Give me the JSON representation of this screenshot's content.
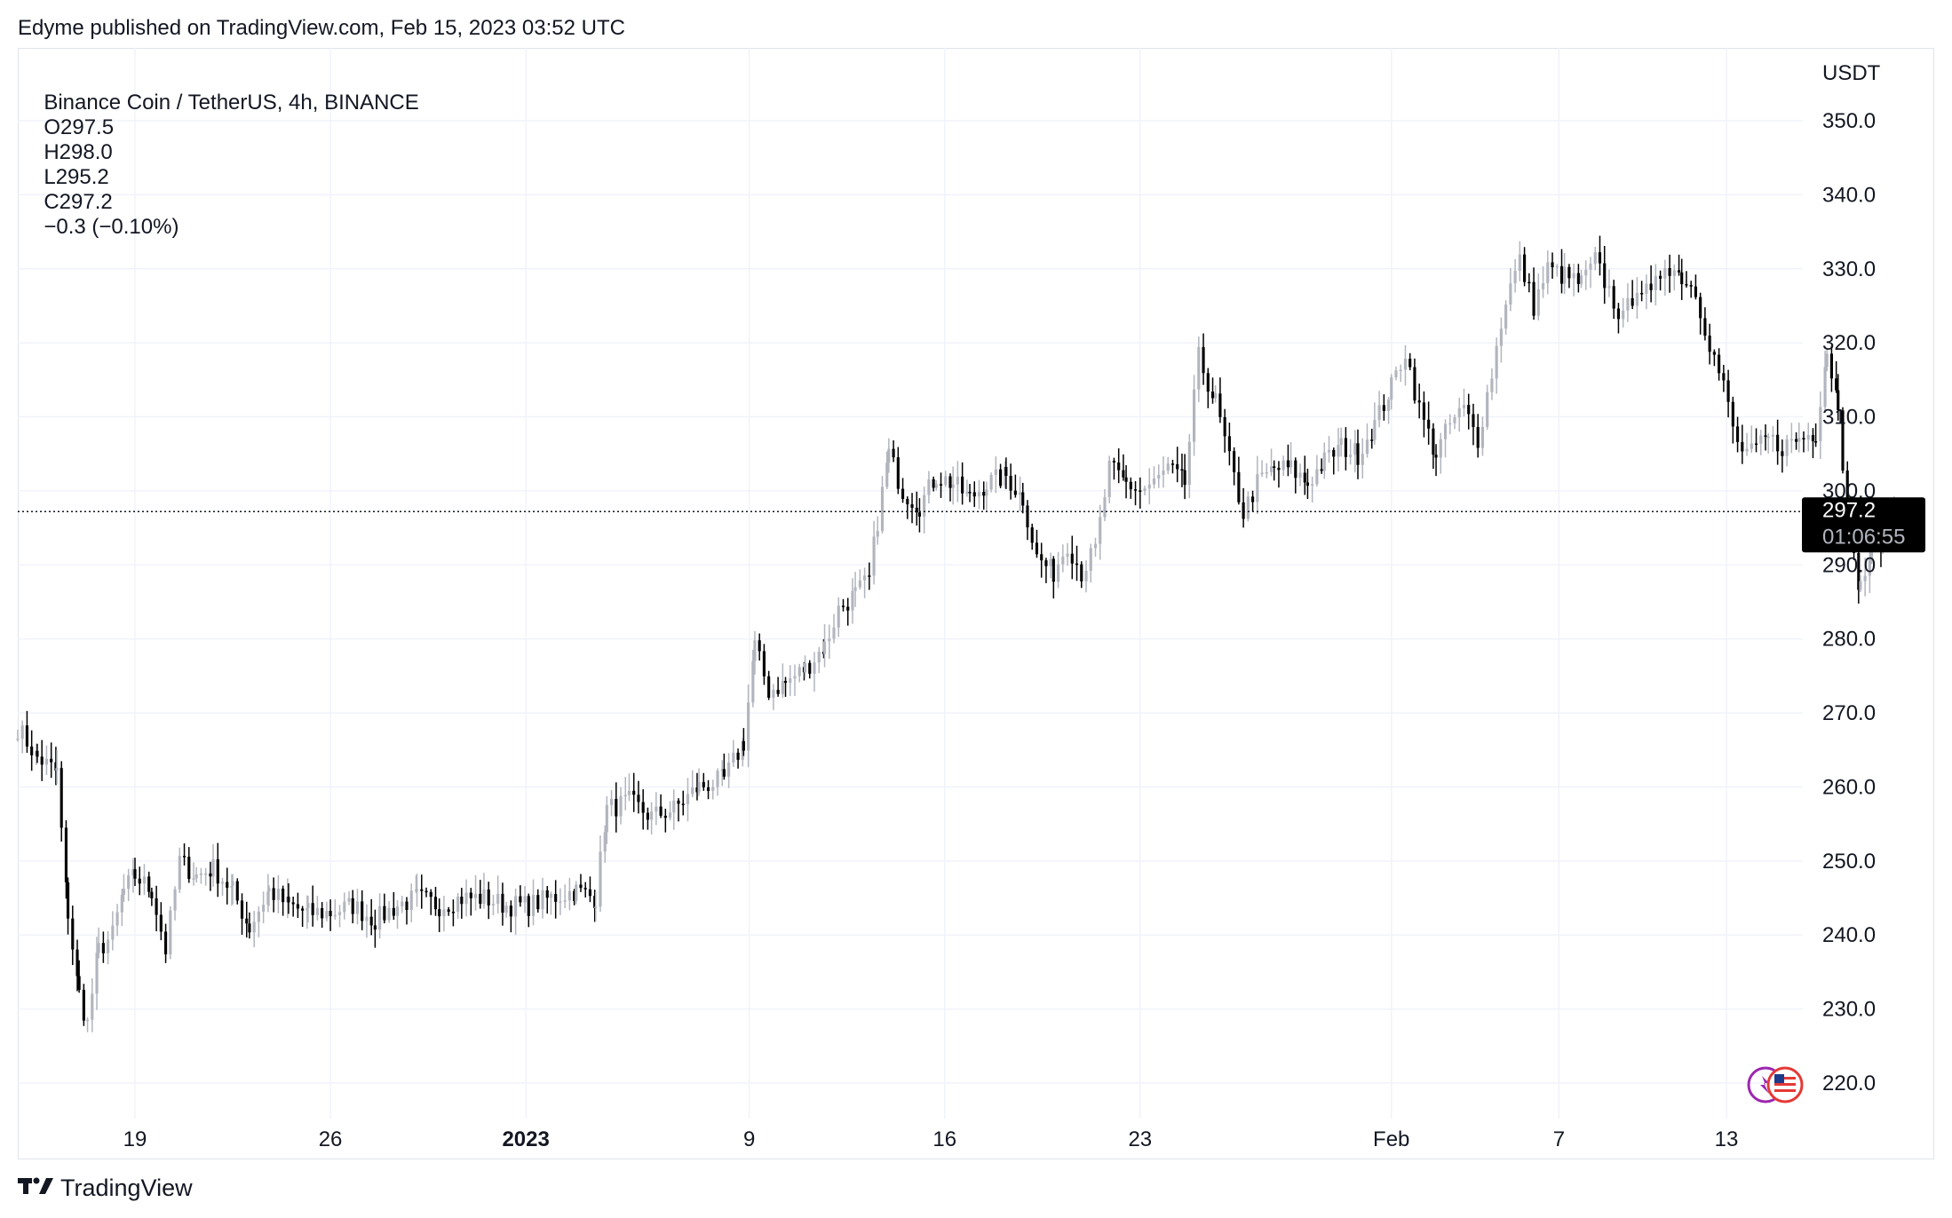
{
  "publisher": "Edyme published on TradingView.com, Feb 15, 2023 03:52 UTC",
  "legend": {
    "symbol": "Binance Coin / TetherUS, 4h, BINANCE",
    "open": "O297.5",
    "high": "H298.0",
    "low": "L295.2",
    "close": "C297.2",
    "change": "−0.3 (−0.10%)"
  },
  "footer": {
    "brand": "TradingView",
    "logo": "tradingview-logo-icon"
  },
  "colors": {
    "up": "#b2b5be",
    "down": "#000000",
    "grid": "#f0f3fa",
    "price_label_bg": "#000000"
  },
  "chart_data": {
    "type": "candlestick",
    "symbol": "BNB/USDT",
    "interval": "4h",
    "unit_label": "USDT",
    "y_ticks": [
      "350.0",
      "340.0",
      "330.0",
      "320.0",
      "310.0",
      "300.0",
      "290.0",
      "280.0",
      "270.0",
      "260.0",
      "250.0",
      "240.0",
      "230.0",
      "220.0"
    ],
    "ylim": [
      215,
      355
    ],
    "x_ticks": [
      {
        "label": "19",
        "day": 19,
        "bold": false
      },
      {
        "label": "26",
        "day": 26,
        "bold": false
      },
      {
        "label": "2023",
        "day": 33,
        "bold": true
      },
      {
        "label": "9",
        "day": 41,
        "bold": false
      },
      {
        "label": "16",
        "day": 48,
        "bold": false
      },
      {
        "label": "23",
        "day": 55,
        "bold": false
      },
      {
        "label": "Feb",
        "day": 64,
        "bold": false
      },
      {
        "label": "7",
        "day": 70,
        "bold": false
      },
      {
        "label": "13",
        "day": 76,
        "bold": false
      }
    ],
    "x_axis_note": "day index = days since Dec 1, 2022",
    "grid": true,
    "last_price": "297.2",
    "countdown": "01:06:55",
    "path_points": [
      [
        14.8,
        268
      ],
      [
        15.5,
        264
      ],
      [
        16.2,
        262
      ],
      [
        16.6,
        243
      ],
      [
        17.0,
        232
      ],
      [
        17.3,
        228
      ],
      [
        17.7,
        238
      ],
      [
        18.2,
        240
      ],
      [
        18.6,
        246
      ],
      [
        19.0,
        248
      ],
      [
        19.6,
        246
      ],
      [
        20.1,
        238
      ],
      [
        20.6,
        250
      ],
      [
        21.2,
        248
      ],
      [
        21.8,
        249
      ],
      [
        22.5,
        246
      ],
      [
        23.1,
        241
      ],
      [
        23.8,
        246
      ],
      [
        24.5,
        244
      ],
      [
        25.2,
        243
      ],
      [
        26.0,
        243
      ],
      [
        26.8,
        244
      ],
      [
        27.6,
        242
      ],
      [
        28.4,
        244
      ],
      [
        29.1,
        245
      ],
      [
        29.9,
        244
      ],
      [
        30.7,
        245
      ],
      [
        31.5,
        245
      ],
      [
        32.3,
        244
      ],
      [
        33.1,
        244
      ],
      [
        33.9,
        245
      ],
      [
        34.8,
        246
      ],
      [
        35.5,
        245
      ],
      [
        35.9,
        257
      ],
      [
        36.7,
        258
      ],
      [
        37.5,
        256
      ],
      [
        38.3,
        257
      ],
      [
        39.2,
        260
      ],
      [
        40.1,
        261
      ],
      [
        40.8,
        266
      ],
      [
        41.2,
        279
      ],
      [
        41.7,
        273
      ],
      [
        42.3,
        274
      ],
      [
        43.0,
        276
      ],
      [
        43.7,
        279
      ],
      [
        44.2,
        284
      ],
      [
        44.8,
        286
      ],
      [
        45.3,
        288
      ],
      [
        45.6,
        296
      ],
      [
        46.0,
        305
      ],
      [
        46.5,
        300
      ],
      [
        47.1,
        298
      ],
      [
        47.7,
        302
      ],
      [
        48.3,
        301
      ],
      [
        48.9,
        299
      ],
      [
        49.5,
        301
      ],
      [
        50.2,
        302
      ],
      [
        50.8,
        299
      ],
      [
        51.3,
        291
      ],
      [
        51.9,
        289
      ],
      [
        52.4,
        293
      ],
      [
        52.9,
        289
      ],
      [
        53.4,
        292
      ],
      [
        53.9,
        303
      ],
      [
        54.5,
        301
      ],
      [
        55.0,
        300
      ],
      [
        55.5,
        301
      ],
      [
        56.0,
        303
      ],
      [
        56.6,
        301
      ],
      [
        57.1,
        318
      ],
      [
        57.7,
        312
      ],
      [
        58.2,
        304
      ],
      [
        58.7,
        297
      ],
      [
        59.2,
        301
      ],
      [
        59.8,
        303
      ],
      [
        60.4,
        303
      ],
      [
        61.0,
        301
      ],
      [
        61.6,
        304
      ],
      [
        62.2,
        306
      ],
      [
        62.8,
        305
      ],
      [
        63.4,
        309
      ],
      [
        64.0,
        314
      ],
      [
        64.5,
        319
      ],
      [
        65.0,
        311
      ],
      [
        65.6,
        305
      ],
      [
        66.1,
        309
      ],
      [
        66.6,
        311
      ],
      [
        67.1,
        307
      ],
      [
        67.6,
        316
      ],
      [
        68.1,
        326
      ],
      [
        68.6,
        331
      ],
      [
        69.1,
        325
      ],
      [
        69.6,
        330
      ],
      [
        70.2,
        329
      ],
      [
        70.8,
        328
      ],
      [
        71.3,
        331
      ],
      [
        71.8,
        327
      ],
      [
        72.3,
        323
      ],
      [
        72.8,
        328
      ],
      [
        73.3,
        326
      ],
      [
        73.8,
        331
      ],
      [
        74.4,
        329
      ],
      [
        74.9,
        327
      ],
      [
        75.4,
        320
      ],
      [
        75.9,
        314
      ],
      [
        76.4,
        306
      ],
      [
        76.9,
        305
      ],
      [
        77.5,
        307
      ],
      [
        78.0,
        306
      ],
      [
        78.6,
        307
      ],
      [
        79.2,
        308
      ],
      [
        79.6,
        319
      ],
      [
        80.0,
        312
      ],
      [
        80.4,
        293
      ],
      [
        80.8,
        287
      ],
      [
        81.2,
        292
      ],
      [
        81.6,
        294
      ],
      [
        82.0,
        297.2
      ]
    ]
  }
}
